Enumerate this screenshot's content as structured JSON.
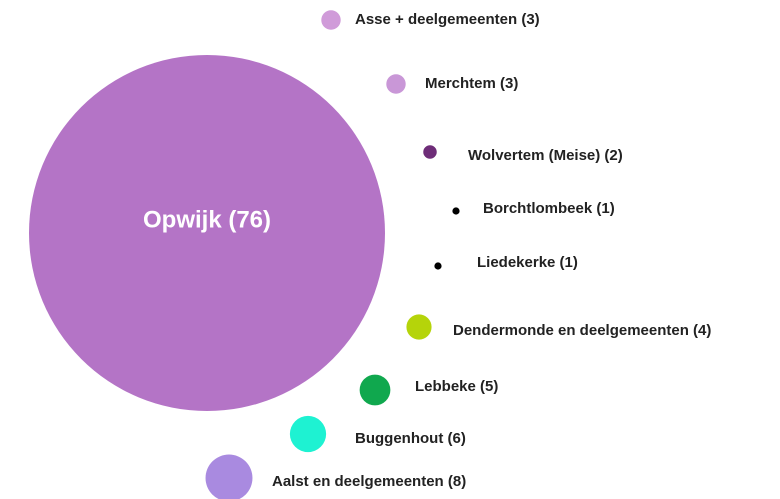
{
  "chart_data": {
    "type": "bubble",
    "categories": [
      "Opwijk (76)",
      "Asse + deelgemeenten (3)",
      "Merchtem (3)",
      "Wolvertem (Meise) (2)",
      "Borchtlombeek (1)",
      "Liedekerke (1)",
      "Dendermonde en deelgemeenten (4)",
      "Lebbeke (5)",
      "Buggenhout (6)",
      "Aalst en deelgemeenten (8)"
    ],
    "values": [
      76,
      3,
      3,
      2,
      1,
      1,
      4,
      5,
      6,
      8
    ],
    "colors": [
      "#b474c6",
      "#d09bd9",
      "#c997d7",
      "#6e2d78",
      "#000000",
      "#000000",
      "#b5d40a",
      "#10a84e",
      "#1ef2d2",
      "#a98ae0"
    ]
  }
}
